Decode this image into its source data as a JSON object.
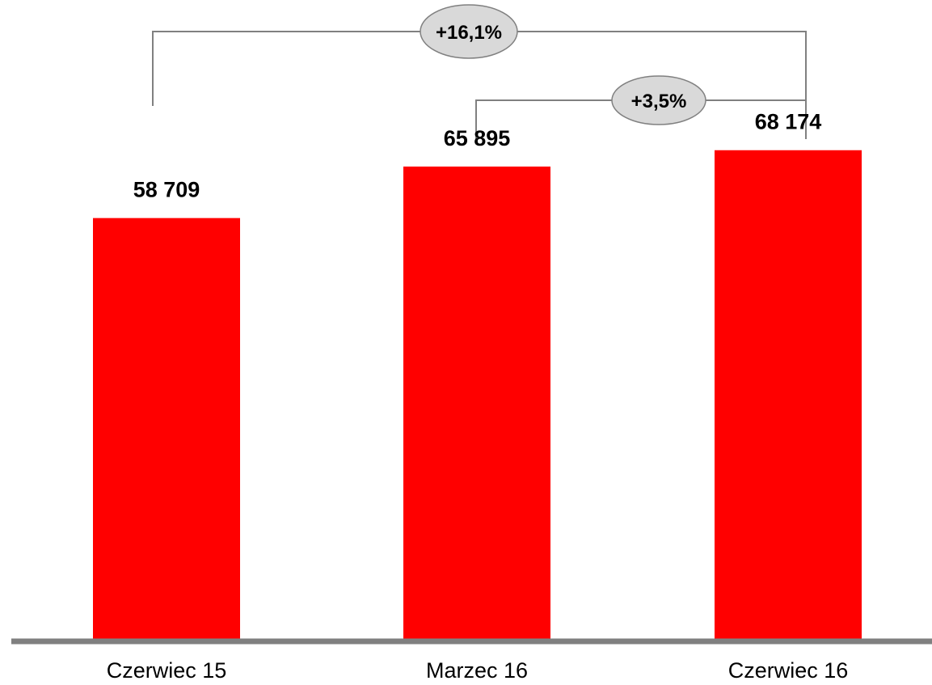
{
  "chart_data": {
    "type": "bar",
    "categories": [
      "Czerwiec 15",
      "Marzec 16",
      "Czerwiec 16"
    ],
    "values": [
      58709,
      65895,
      68174
    ],
    "value_labels": [
      "58 709",
      "65 895",
      "68 174"
    ],
    "ylim": [
      0,
      88000
    ],
    "grid": false,
    "legend": "none",
    "annotations": [
      {
        "from": 0,
        "to": 2,
        "label": "+16,1%"
      },
      {
        "from": 1,
        "to": 2,
        "label": "+3,5%"
      }
    ]
  },
  "colors": {
    "bar": "#ff0000",
    "axis": "#808080",
    "bracket": "#808080",
    "bubble_fill": "#d9d9d9",
    "bubble_stroke": "#808080",
    "text": "#000000"
  }
}
